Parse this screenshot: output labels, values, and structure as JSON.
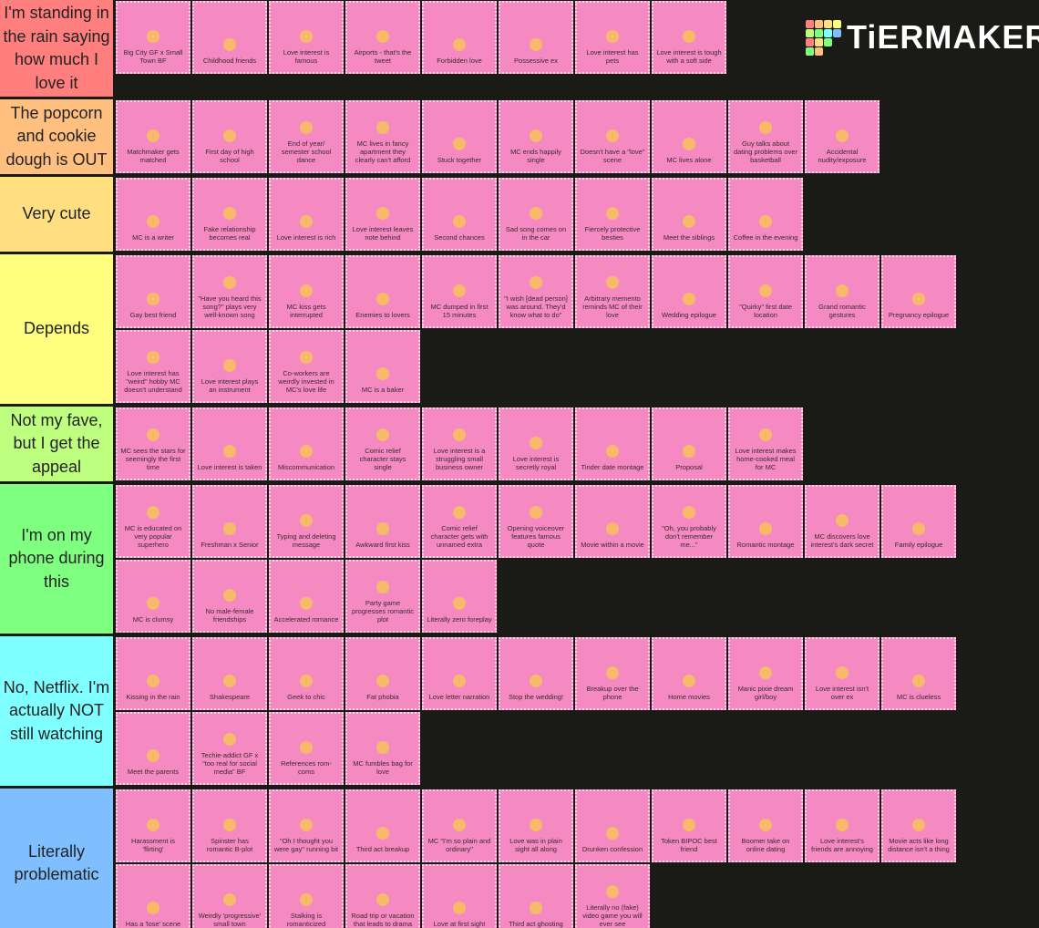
{
  "logo": "TiERMAKER",
  "tiers": [
    {
      "label": "I'm standing in the rain saying how much I love it",
      "color": "#ff7f7f",
      "items": [
        "Big City GF x Small Town BF",
        "Childhood friends",
        "Love interest is famous",
        "Airports - that's the tweet",
        "Forbidden love",
        "Possessive ex",
        "Love interest has pets",
        "Love interest is tough with a soft side"
      ]
    },
    {
      "label": "The popcorn and cookie dough is OUT",
      "color": "#ffbf7f",
      "items": [
        "Matchmaker gets matched",
        "First day of high school",
        "End of year/ semester school dance",
        "MC lives in fancy apartment they clearly can't afford",
        "Stuck together",
        "MC ends happily single",
        "Doesn't have a \"love\" scene",
        "MC lives alone",
        "Guy talks about dating problems over basketball",
        "Accidental nudity/exposure"
      ]
    },
    {
      "label": "Very cute",
      "color": "#ffdf7f",
      "items": [
        "MC is a writer",
        "Fake relationship becomes real",
        "Love interest is rich",
        "Love interest leaves note behind",
        "Second chances",
        "Sad song comes on in the car",
        "Fiercely protective besties",
        "Meet the siblings",
        "Coffee in the evening"
      ]
    },
    {
      "label": "Depends",
      "color": "#ffff7f",
      "items": [
        "Gay best friend",
        "\"Have you heard this song?\" plays very well-known song",
        "MC kiss gets interrupted",
        "Enemies to lovers",
        "MC dumped in first 15 minutes",
        "\"I wish [dead person] was around. They'd know what to do\"",
        "Arbitrary memento reminds MC of their love",
        "Wedding epilogue",
        "\"Quirky\" first date location",
        "Grand romantic gestures",
        "Pregnancy epilogue",
        "Love interest has \"weird\" hobby MC doesn't understand",
        "Love interest plays an instrument",
        "Co-workers are weirdly invested in MC's love life",
        "MC is a baker"
      ]
    },
    {
      "label": "Not my fave, but I get the appeal",
      "color": "#bfff7f",
      "items": [
        "MC sees the stars for seemingly the first time",
        "Love interest is taken",
        "Miscommunication",
        "Comic relief character stays single",
        "Love interest is a struggling small business owner",
        "Love interest is secretly royal",
        "Tinder date montage",
        "Proposal",
        "Love interest makes home-cooked meal for MC"
      ]
    },
    {
      "label": "I'm on my phone during this",
      "color": "#7fff7f",
      "items": [
        "MC is educated on very popular superhero",
        "Freshman x Senior",
        "Typing and deleting message",
        "Awkward first kiss",
        "Comic relief character gets with unnamed extra",
        "Opening voiceover features famous quote",
        "Movie within a movie",
        "\"Oh, you probably don't remember me...\"",
        "Romantic montage",
        "MC discovers love interest's dark secret",
        "Family epilogue",
        "MC is clumsy",
        "No male-female friendships",
        "Accelerated romance",
        "Party game progresses romantic plot",
        "Literally zero foreplay"
      ]
    },
    {
      "label": "No, Netflix. I'm actually NOT still watching",
      "color": "#7fffff",
      "items": [
        "Kissing in the rain",
        "Shakespeare",
        "Geek to chic",
        "Fat phobia",
        "Love letter narration",
        "Stop the wedding!",
        "Breakup over the phone",
        "Home movies",
        "Manic pixie dream girl/boy",
        "Love interest isn't over ex",
        "MC is clueless",
        "Meet the parents",
        "Techie-addict GF x \"too real for social media\" BF",
        "References rom-coms",
        "MC fumbles bag for love"
      ]
    },
    {
      "label": "Literally problematic",
      "color": "#7fbfff",
      "items": [
        "Harassment is 'flirting'",
        "Spinster has romantic B-plot",
        "\"Oh I thought you were gay\" running bit",
        "Third act breakup",
        "MC \"I'm so plain and ordinary\"",
        "Love was in plain sight all along",
        "Drunken confession",
        "Token BIPOC best friend",
        "Boomer take on online dating",
        "Love interest's friends are annoying",
        "Movie acts like long distance isn't a thing",
        "Has a 'lose' scene",
        "Weirdly 'progressive' small town",
        "Stalking is romanticized",
        "Road trip or vacation that leads to drama",
        "Love at first sight",
        "Third act ghosting",
        "Literally no (fake) video game you will ever see"
      ]
    }
  ]
}
